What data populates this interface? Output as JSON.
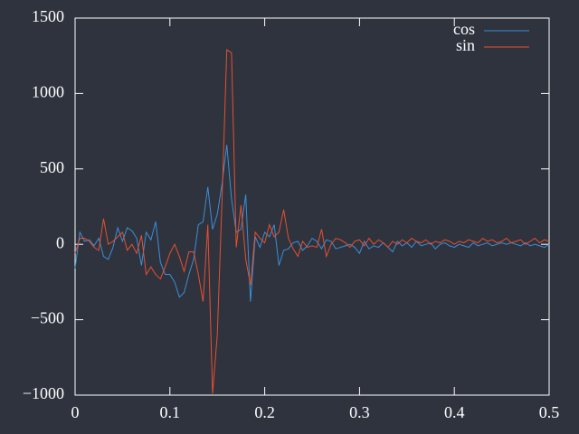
{
  "chart_data": {
    "type": "line",
    "x": [
      0,
      0.005,
      0.01,
      0.015,
      0.02,
      0.025,
      0.03,
      0.035,
      0.04,
      0.045,
      0.05,
      0.055,
      0.06,
      0.065,
      0.07,
      0.075,
      0.08,
      0.085,
      0.09,
      0.095,
      0.1,
      0.105,
      0.11,
      0.115,
      0.12,
      0.125,
      0.13,
      0.135,
      0.14,
      0.145,
      0.15,
      0.155,
      0.16,
      0.165,
      0.17,
      0.175,
      0.18,
      0.185,
      0.19,
      0.195,
      0.2,
      0.205,
      0.21,
      0.215,
      0.22,
      0.225,
      0.23,
      0.235,
      0.24,
      0.245,
      0.25,
      0.255,
      0.26,
      0.265,
      0.27,
      0.275,
      0.28,
      0.285,
      0.29,
      0.295,
      0.3,
      0.305,
      0.31,
      0.315,
      0.32,
      0.325,
      0.33,
      0.335,
      0.34,
      0.345,
      0.35,
      0.355,
      0.36,
      0.365,
      0.37,
      0.375,
      0.38,
      0.385,
      0.39,
      0.395,
      0.4,
      0.405,
      0.41,
      0.415,
      0.42,
      0.425,
      0.43,
      0.435,
      0.44,
      0.445,
      0.45,
      0.455,
      0.46,
      0.465,
      0.47,
      0.475,
      0.48,
      0.485,
      0.49,
      0.495,
      0.5
    ],
    "series": [
      {
        "name": "cos",
        "color": "#3b8fd8",
        "values": [
          -160,
          80,
          20,
          30,
          -10,
          40,
          -80,
          -100,
          -20,
          110,
          20,
          110,
          90,
          40,
          -140,
          80,
          30,
          150,
          -120,
          -200,
          -200,
          -250,
          -350,
          -320,
          -200,
          -100,
          130,
          150,
          380,
          100,
          200,
          400,
          660,
          300,
          80,
          100,
          330,
          -380,
          50,
          -20,
          80,
          50,
          130,
          -140,
          -40,
          -30,
          10,
          20,
          -40,
          -10,
          40,
          20,
          -30,
          30,
          20,
          -30,
          -20,
          -10,
          0,
          -20,
          -60,
          20,
          -30,
          -10,
          -20,
          10,
          -20,
          -50,
          20,
          -10,
          10,
          -20,
          20,
          -10,
          0,
          10,
          -30,
          0,
          10,
          -10,
          -20,
          0,
          -10,
          -20,
          10,
          -10,
          0,
          10,
          -10,
          0,
          10,
          0,
          10,
          0,
          -10,
          10,
          -10,
          0,
          -10,
          -20,
          0
        ]
      },
      {
        "name": "sin",
        "color": "#e8502f",
        "values": [
          -60,
          40,
          40,
          20,
          -20,
          -40,
          170,
          0,
          20,
          50,
          80,
          -40,
          0,
          -60,
          60,
          -200,
          -150,
          -200,
          -230,
          -150,
          -60,
          0,
          -80,
          -180,
          -50,
          -50,
          -200,
          -380,
          130,
          -990,
          -600,
          300,
          1290,
          1270,
          -20,
          260,
          -100,
          -270,
          80,
          40,
          10,
          130,
          50,
          80,
          230,
          40,
          -30,
          -80,
          20,
          -20,
          -10,
          -20,
          100,
          -80,
          0,
          40,
          30,
          10,
          -20,
          20,
          30,
          -10,
          40,
          0,
          30,
          10,
          -20,
          20,
          0,
          30,
          10,
          40,
          20,
          10,
          30,
          0,
          20,
          10,
          30,
          20,
          0,
          20,
          10,
          30,
          20,
          10,
          40,
          20,
          30,
          10,
          20,
          40,
          10,
          20,
          30,
          0,
          20,
          40,
          10,
          30,
          20
        ]
      }
    ],
    "xlim": [
      0,
      0.5
    ],
    "xticks": [
      0,
      0.1,
      0.2,
      0.3,
      0.4,
      0.5
    ],
    "ylim": [
      -1000,
      1500
    ],
    "yticks": [
      {
        "value": -1000,
        "label": "−1000"
      },
      {
        "value": -500,
        "label": "−500"
      },
      0,
      500,
      1000,
      1500
    ],
    "legend": "upper right"
  }
}
